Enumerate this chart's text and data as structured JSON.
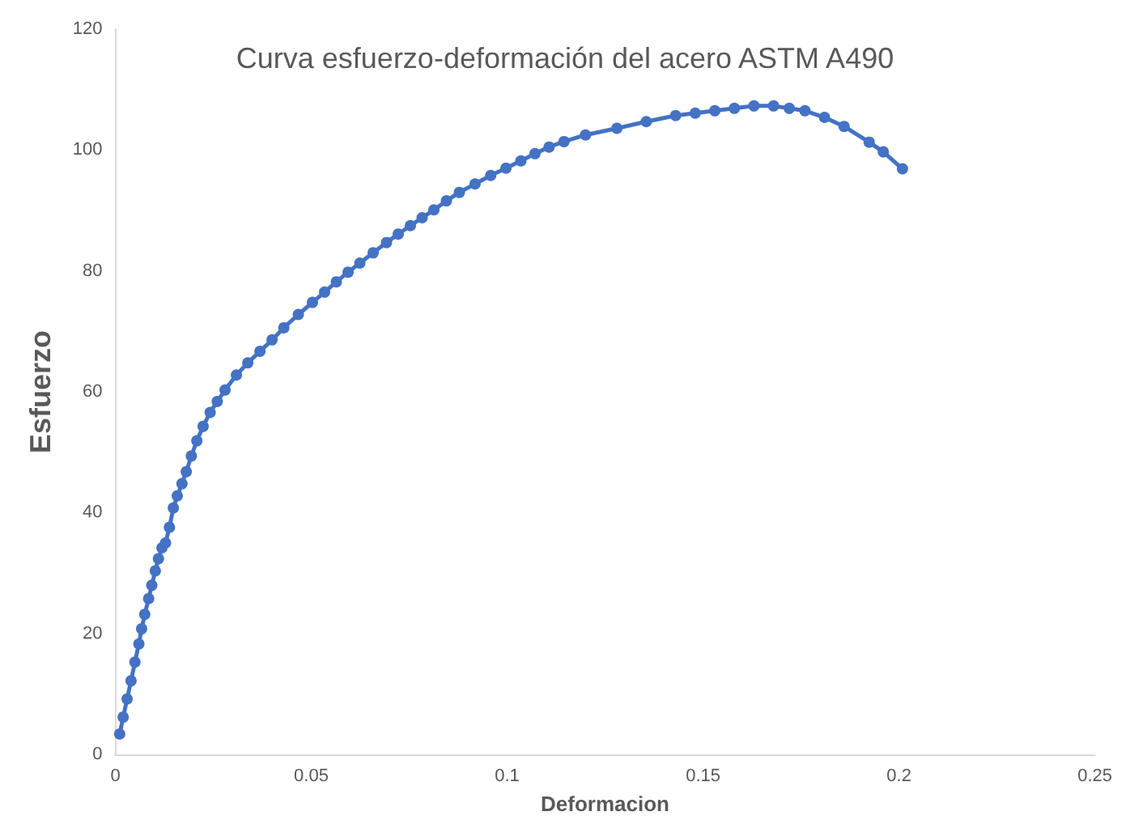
{
  "chart_data": {
    "type": "line",
    "title": "Curva esfuerzo-deformación del acero ASTM A490",
    "xlabel": "Deformacion",
    "ylabel": "Esfuerzo",
    "marker": "circle",
    "grid": false,
    "x": [
      0.0011,
      0.002,
      0.003,
      0.004,
      0.005,
      0.006,
      0.0067,
      0.0075,
      0.0085,
      0.0093,
      0.0102,
      0.011,
      0.0119,
      0.0128,
      0.0138,
      0.0148,
      0.0158,
      0.017,
      0.0181,
      0.0194,
      0.0208,
      0.0224,
      0.0242,
      0.026,
      0.028,
      0.0309,
      0.0338,
      0.0369,
      0.04,
      0.043,
      0.0467,
      0.0503,
      0.0534,
      0.0564,
      0.0594,
      0.0624,
      0.0658,
      0.0692,
      0.0722,
      0.0753,
      0.0783,
      0.0813,
      0.0845,
      0.0878,
      0.0918,
      0.0958,
      0.0997,
      0.1035,
      0.1071,
      0.1107,
      0.1145,
      0.12,
      0.128,
      0.1355,
      0.143,
      0.148,
      0.153,
      0.158,
      0.163,
      0.168,
      0.172,
      0.176,
      0.181,
      0.186,
      0.1924,
      0.196,
      0.2009
    ],
    "series": [
      {
        "color": "#4472c4",
        "values": [
          3.4,
          6.2,
          9.2,
          12.2,
          15.3,
          18.3,
          20.8,
          23.2,
          25.8,
          28,
          30.4,
          32.4,
          34.2,
          35,
          37.6,
          40.8,
          42.8,
          44.8,
          46.8,
          49.4,
          51.9,
          54.3,
          56.6,
          58.4,
          60.3,
          62.8,
          64.8,
          66.7,
          68.6,
          70.6,
          72.8,
          74.8,
          76.5,
          78.2,
          79.8,
          81.3,
          83,
          84.7,
          86.1,
          87.5,
          88.8,
          90.1,
          91.6,
          93,
          94.4,
          95.8,
          97,
          98.2,
          99.4,
          100.5,
          101.4,
          102.5,
          103.6,
          104.7,
          105.7,
          106.1,
          106.5,
          106.9,
          107.3,
          107.3,
          106.9,
          106.5,
          105.4,
          103.9,
          101.3,
          99.7,
          96.9
        ]
      }
    ],
    "xlim": [
      0,
      0.25
    ],
    "xticks": [
      0,
      0.05,
      0.1,
      0.15,
      0.2,
      0.25
    ],
    "ylim": [
      0,
      120
    ],
    "yticks": [
      0,
      20,
      40,
      60,
      80,
      100,
      120
    ]
  }
}
